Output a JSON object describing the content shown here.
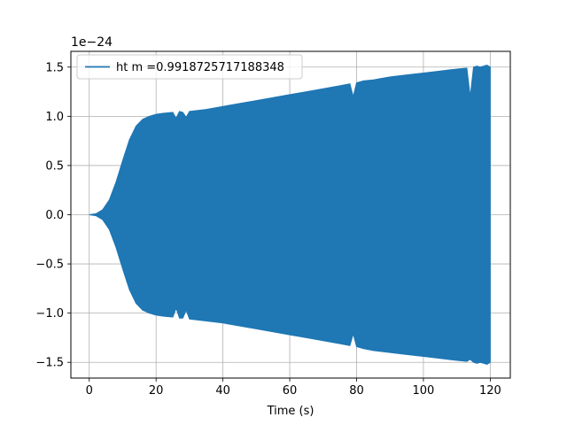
{
  "chart_data": {
    "type": "area",
    "title": "",
    "xlabel": "Time (s)",
    "ylabel": "",
    "y_scale_label": "1e−24",
    "xlim": [
      -5.5,
      126
    ],
    "ylim": [
      -1.66,
      1.66
    ],
    "xticks": [
      0,
      20,
      40,
      60,
      80,
      100,
      120
    ],
    "yticks": [
      -1.5,
      -1.0,
      -0.5,
      0.0,
      0.5,
      1.0,
      1.5
    ],
    "xtick_labels": [
      "0",
      "20",
      "40",
      "60",
      "80",
      "100",
      "120"
    ],
    "ytick_labels": [
      "−1.5",
      "−1.0",
      "−0.5",
      "0.0",
      "0.5",
      "1.0",
      "1.5"
    ],
    "grid": true,
    "legend_position": "upper-left",
    "series": [
      {
        "name": "ht m =0.9918725717188348",
        "color": "#1f77b4",
        "x": [
          0,
          2,
          4,
          6,
          8,
          10,
          12,
          14,
          16,
          18,
          19,
          20,
          22,
          25,
          26,
          27,
          28,
          29,
          30,
          35,
          40,
          45,
          50,
          55,
          60,
          65,
          70,
          75,
          78,
          79,
          80,
          81,
          82,
          85,
          90,
          95,
          100,
          105,
          110,
          113,
          114,
          115,
          116,
          117,
          118,
          119,
          120
        ],
        "upper": [
          0.0,
          0.01,
          0.05,
          0.15,
          0.33,
          0.55,
          0.76,
          0.9,
          0.97,
          1.0,
          1.01,
          1.02,
          1.03,
          1.04,
          0.98,
          1.05,
          1.04,
          0.99,
          1.05,
          1.07,
          1.1,
          1.13,
          1.16,
          1.19,
          1.22,
          1.25,
          1.28,
          1.31,
          1.33,
          1.2,
          1.34,
          1.35,
          1.36,
          1.37,
          1.4,
          1.42,
          1.44,
          1.46,
          1.48,
          1.49,
          1.2,
          1.5,
          1.51,
          1.5,
          1.51,
          1.52,
          1.5
        ],
        "lower": [
          0.0,
          -0.01,
          -0.05,
          -0.15,
          -0.33,
          -0.55,
          -0.76,
          -0.9,
          -0.97,
          -1.0,
          -1.01,
          -1.02,
          -1.03,
          -1.04,
          -0.95,
          -1.05,
          -1.05,
          -0.97,
          -1.06,
          -1.08,
          -1.1,
          -1.13,
          -1.16,
          -1.19,
          -1.22,
          -1.25,
          -1.28,
          -1.31,
          -1.33,
          -1.21,
          -1.34,
          -1.35,
          -1.36,
          -1.38,
          -1.4,
          -1.42,
          -1.44,
          -1.46,
          -1.48,
          -1.49,
          -1.47,
          -1.5,
          -1.51,
          -1.5,
          -1.51,
          -1.52,
          -1.5
        ]
      }
    ]
  }
}
